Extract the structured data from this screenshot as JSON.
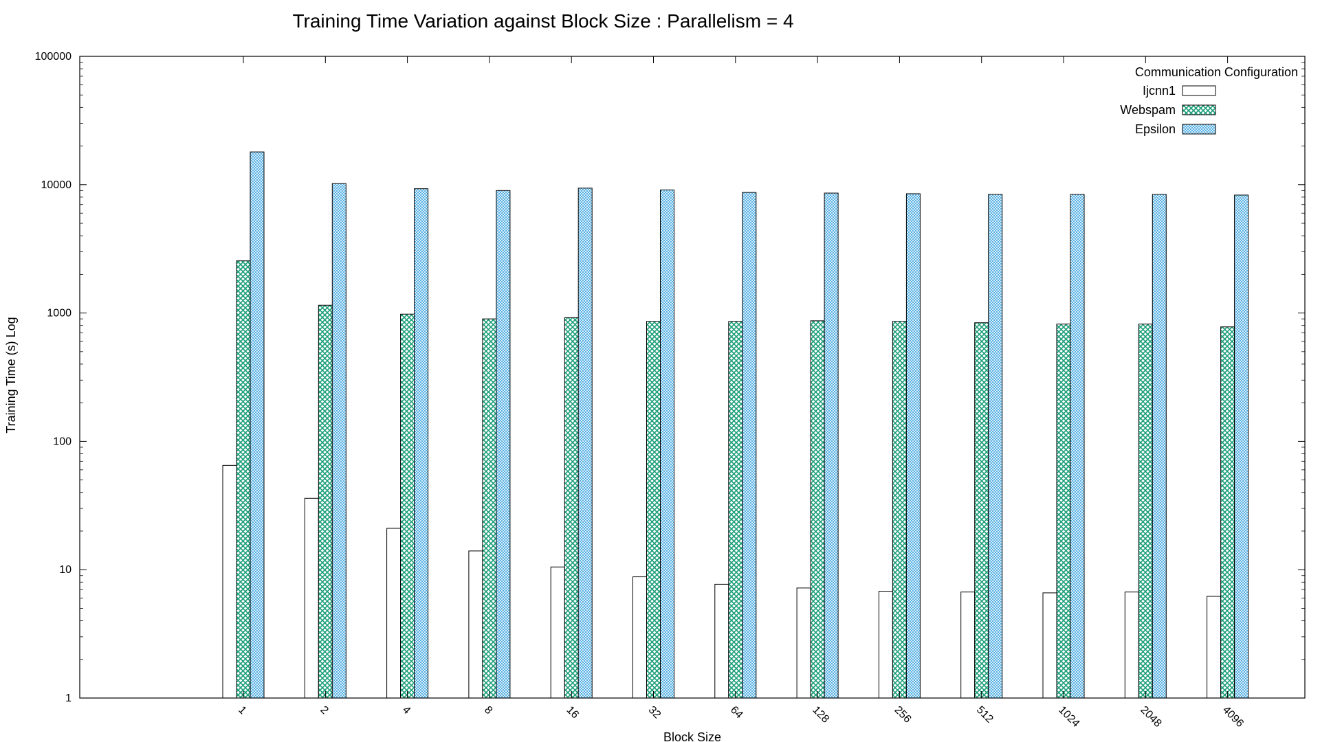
{
  "chart_data": {
    "type": "bar",
    "title": "Training Time Variation against Block Size : Parallelism = 4",
    "xlabel": "Block Size",
    "ylabel": "Training Time (s) Log",
    "yscale": "log",
    "ylim": [
      1,
      100000
    ],
    "yticks": [
      "1",
      "10",
      "100",
      "1000",
      "10000",
      "100000"
    ],
    "categories": [
      "1",
      "2",
      "4",
      "8",
      "16",
      "32",
      "64",
      "128",
      "256",
      "512",
      "1024",
      "2048",
      "4096"
    ],
    "legend": {
      "title": "Communication Configuration",
      "placement": "top-right"
    },
    "series": [
      {
        "name": "Ijcnn1",
        "fill": "#ffffff",
        "pattern": "none",
        "values": [
          65,
          36,
          21,
          14,
          10.5,
          8.8,
          7.7,
          7.2,
          6.8,
          6.7,
          6.6,
          6.7,
          6.2
        ]
      },
      {
        "name": "Webspam",
        "fill": "#1a9e77",
        "pattern": "crosshatch",
        "values": [
          2550,
          1150,
          980,
          900,
          920,
          860,
          860,
          870,
          860,
          840,
          820,
          820,
          780
        ]
      },
      {
        "name": "Epsilon",
        "fill": "#3fa6e0",
        "pattern": "finehatch",
        "values": [
          18000,
          10200,
          9300,
          9000,
          9400,
          9100,
          8700,
          8600,
          8500,
          8400,
          8400,
          8400,
          8300
        ]
      }
    ]
  }
}
